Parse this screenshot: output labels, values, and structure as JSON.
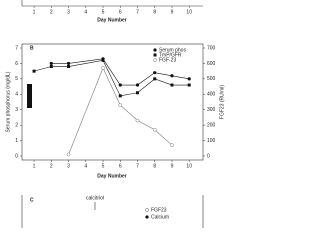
{
  "chart_data": [
    {
      "type": "line",
      "x_label": "Day Number",
      "xticks": [
        1,
        2,
        3,
        4,
        5,
        6,
        7,
        8,
        9,
        10
      ]
    },
    {
      "type": "line",
      "panel": "B",
      "x_label": "Day Number",
      "y_label": "Serum phosphorus (mg/dL)",
      "y2_label": "FGF23 (RU/ml)",
      "xlim": [
        0.3,
        10.8
      ],
      "xticks": [
        1,
        2,
        3,
        4,
        5,
        6,
        7,
        8,
        9,
        10
      ],
      "ylim": [
        0,
        7
      ],
      "yticks": [
        0,
        1,
        2,
        3,
        4,
        5,
        6,
        7
      ],
      "y2lim": [
        0,
        700
      ],
      "y2ticks": [
        0,
        100,
        200,
        300,
        400,
        500,
        600,
        700
      ],
      "series": [
        {
          "name": "Serum phos",
          "color": "#111111",
          "x": [
            2,
            3,
            5,
            6,
            7,
            8,
            9,
            10
          ],
          "values": [
            6.0,
            6.0,
            6.3,
            4.6,
            4.6,
            5.4,
            5.2,
            5.0
          ]
        },
        {
          "name": "TmP/GFR",
          "color": "#111111",
          "x": [
            1,
            2,
            3,
            5,
            6,
            7,
            8,
            9,
            10
          ],
          "values": [
            5.5,
            5.8,
            5.8,
            6.2,
            3.9,
            4.1,
            5.0,
            4.6,
            4.6
          ]
        },
        {
          "name": "FGF-23",
          "color": "#777777",
          "axis": "y2",
          "x": [
            3,
            5,
            6,
            7,
            8,
            9
          ],
          "values": [
            10,
            570,
            330,
            230,
            170,
            70
          ]
        }
      ]
    },
    {
      "type": "line",
      "panel": "C",
      "annotation": "calcitriol",
      "legend": [
        "FGF23",
        "Calcium"
      ]
    }
  ]
}
